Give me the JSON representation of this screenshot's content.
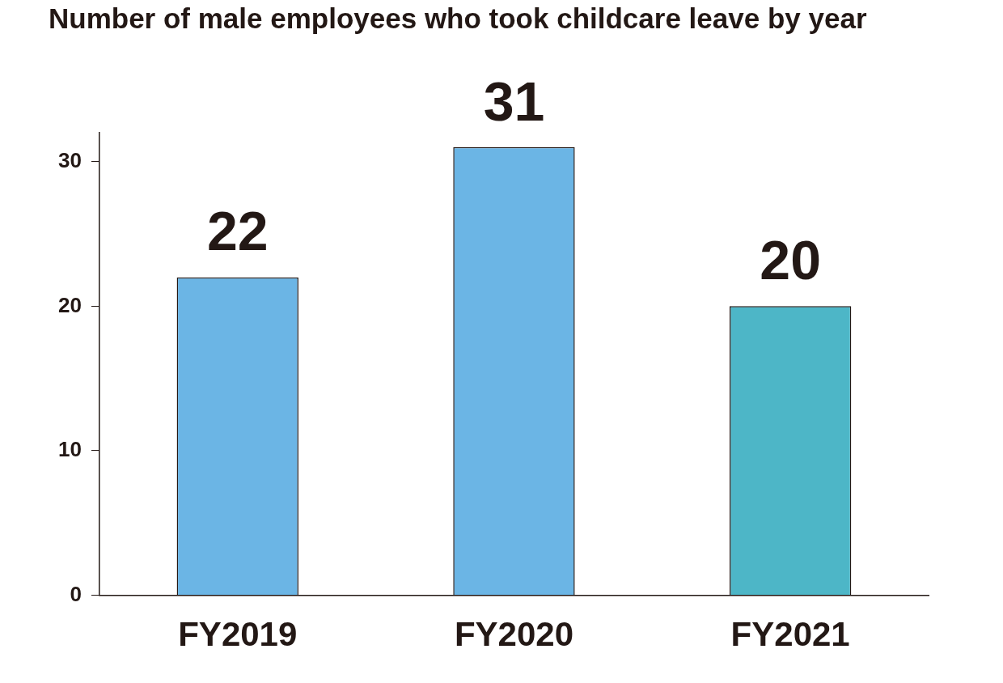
{
  "chart_data": {
    "type": "bar",
    "title": "Number of male employees who took childcare leave by year",
    "categories": [
      "FY2019",
      "FY2020",
      "FY2021"
    ],
    "values": [
      22,
      31,
      20
    ],
    "colors": [
      "#6bb5e5",
      "#6bb5e5",
      "#4db6c7"
    ],
    "ylim": [
      0,
      32
    ],
    "yticks": [
      0,
      10,
      20,
      30
    ],
    "grid": false,
    "data_labels": true
  }
}
